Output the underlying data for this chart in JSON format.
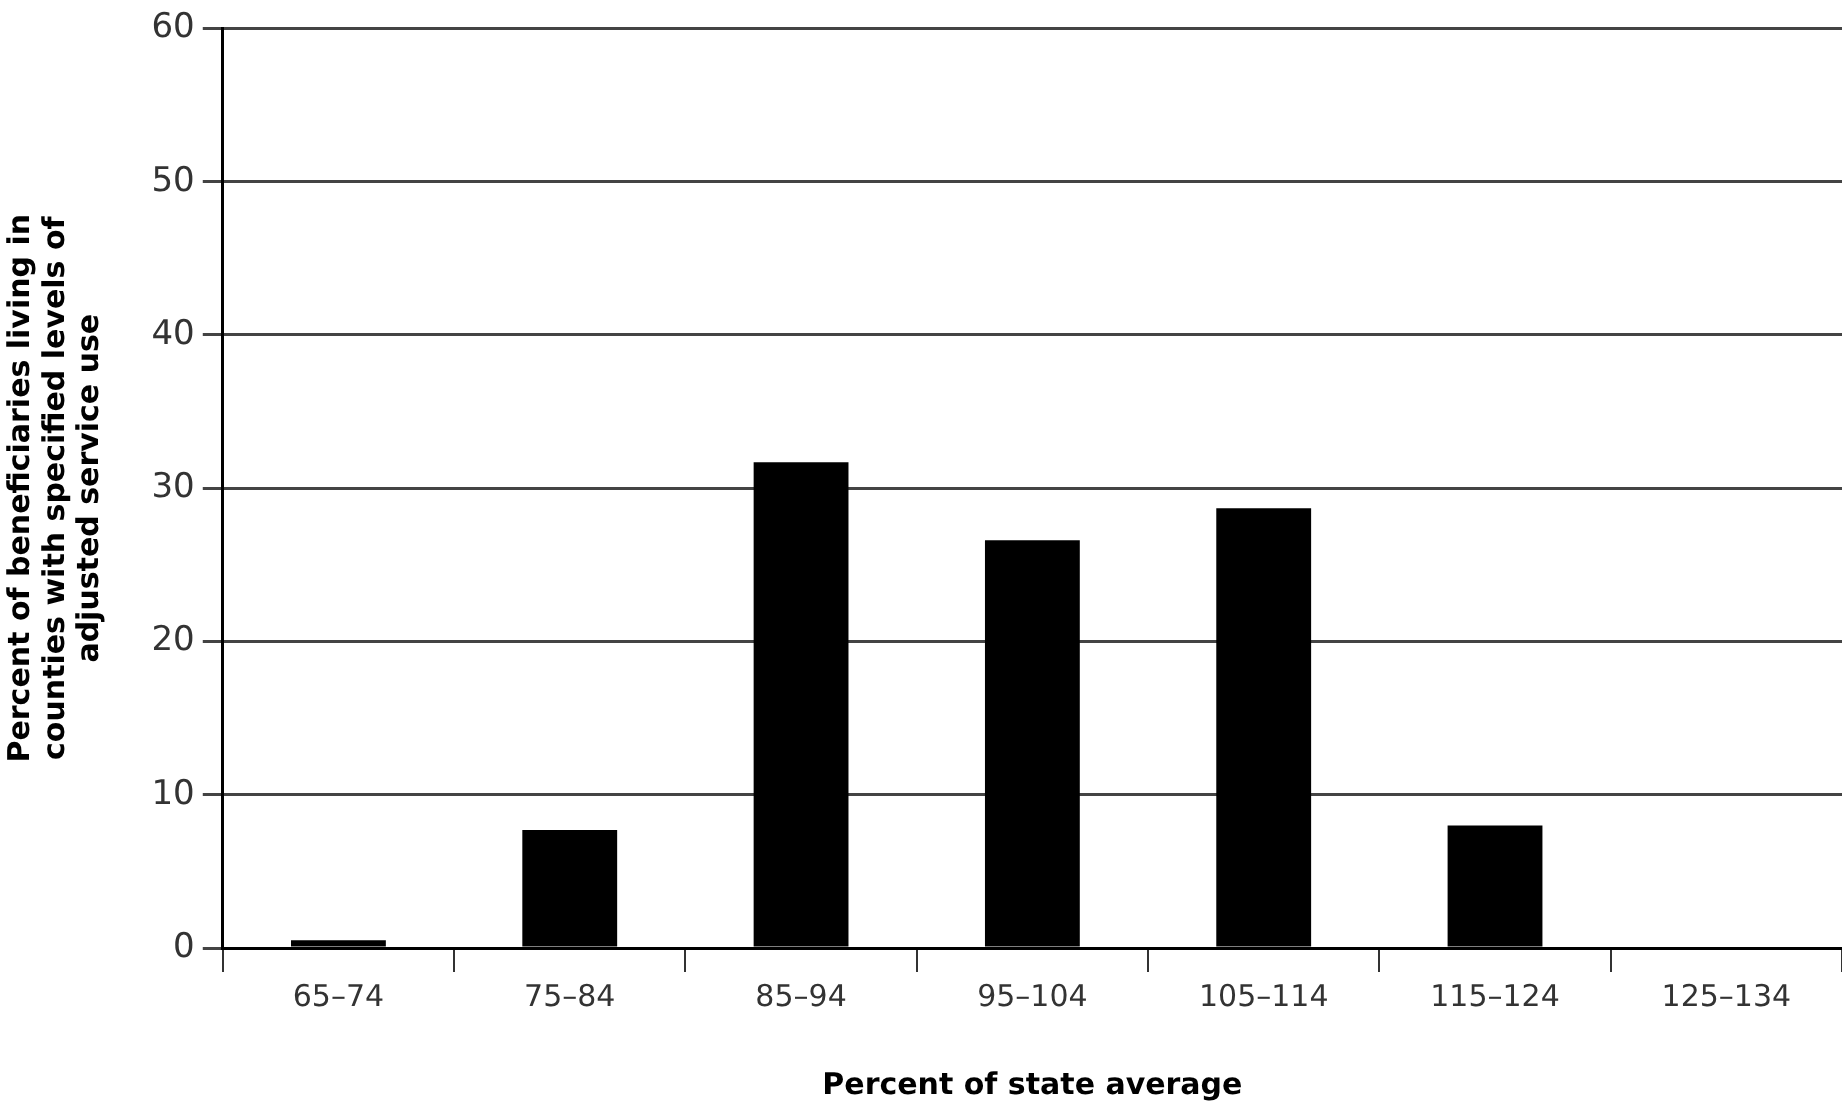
{
  "chart_data": {
    "type": "bar",
    "categories": [
      "65–74",
      "75–84",
      "85–94",
      "95–104",
      "105–114",
      "115–124",
      "125–134"
    ],
    "values": [
      0.5,
      7.7,
      31.7,
      26.6,
      28.7,
      8.0,
      0
    ],
    "color": "#000000",
    "xlabel": "Percent of state average",
    "ylabel": "Percent of beneficiaries living in counties with specified levels of adjusted service use",
    "ylim": [
      0,
      60
    ],
    "yticks": [
      0,
      10,
      20,
      30,
      40,
      50,
      60
    ],
    "grid": "y",
    "legend": false
  }
}
